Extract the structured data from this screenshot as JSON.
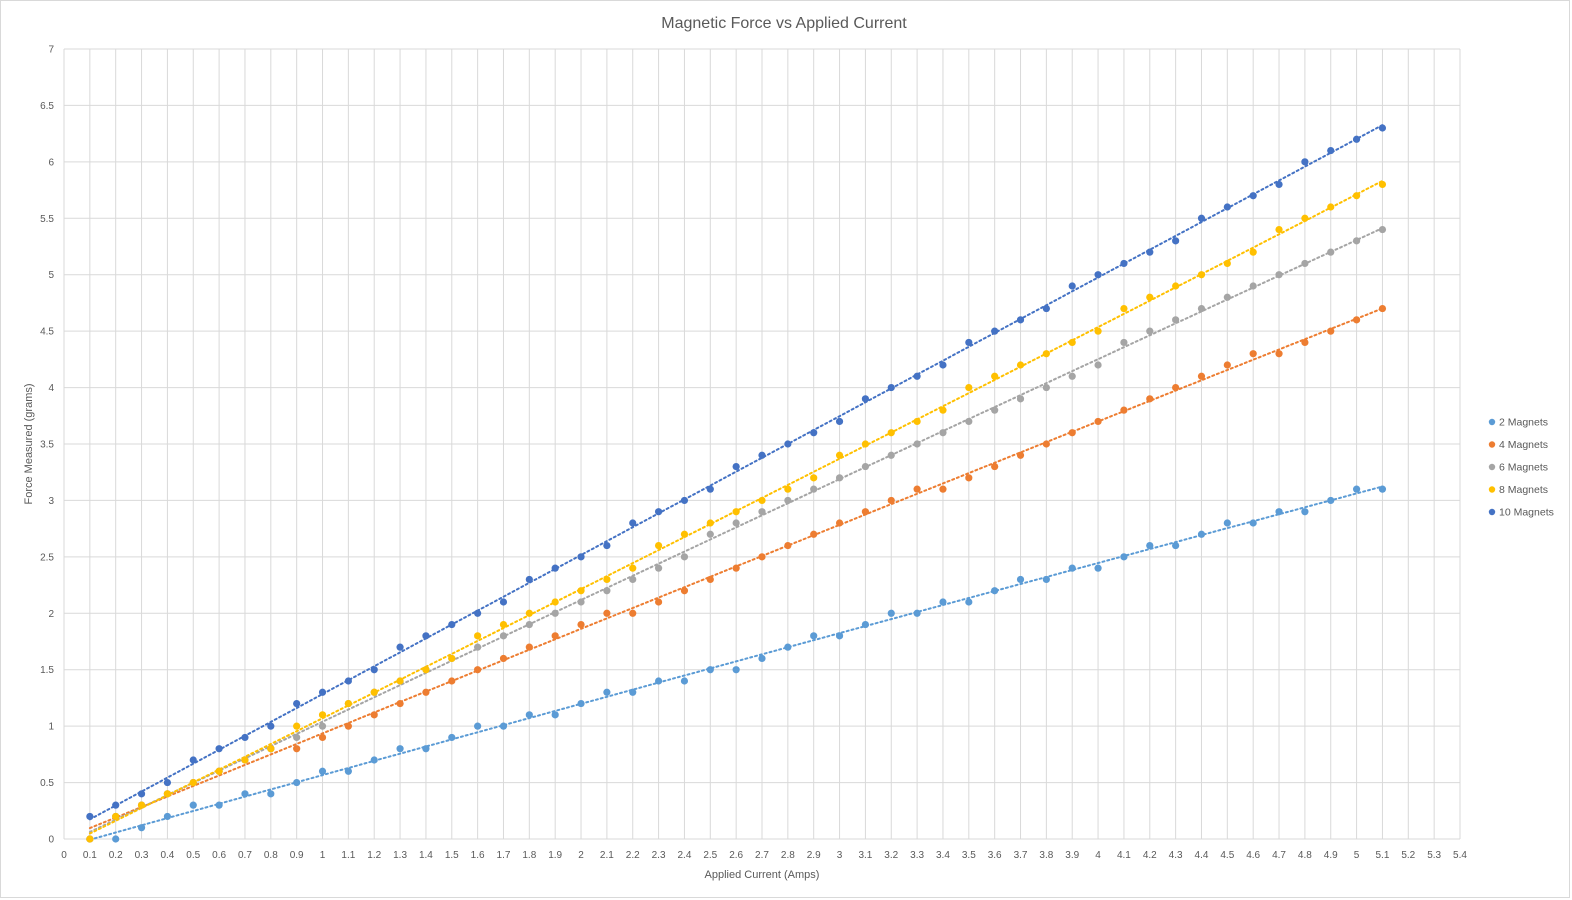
{
  "chart_data": {
    "type": "scatter",
    "title": "Magnetic Force vs Applied Current",
    "xlabel": "Applied Current (Amps)",
    "ylabel": "Force Measured (grams)",
    "xlim": [
      0,
      5.4
    ],
    "ylim": [
      0,
      7
    ],
    "x_major_step": 0.1,
    "y_major_step": 0.5,
    "x_tick_labels": [
      "0",
      "0.1",
      "0.2",
      "0.3",
      "0.4",
      "0.5",
      "0.6",
      "0.7",
      "0.8",
      "0.9",
      "1",
      "1.1",
      "1.2",
      "1.3",
      "1.4",
      "1.5",
      "1.6",
      "1.7",
      "1.8",
      "1.9",
      "2",
      "2.1",
      "2.2",
      "2.3",
      "2.4",
      "2.5",
      "2.6",
      "2.7",
      "2.8",
      "2.9",
      "3",
      "3.1",
      "3.2",
      "3.3",
      "3.4",
      "3.5",
      "3.6",
      "3.7",
      "3.8",
      "3.9",
      "4",
      "4.1",
      "4.2",
      "4.3",
      "4.4",
      "4.5",
      "4.6",
      "4.7",
      "4.8",
      "4.9",
      "5",
      "5.1",
      "5.2",
      "5.3",
      "5.4"
    ],
    "y_tick_labels": [
      "0",
      "0.5",
      "1",
      "1.5",
      "2",
      "2.5",
      "3",
      "3.5",
      "4",
      "4.5",
      "5",
      "5.5",
      "6",
      "6.5",
      "7"
    ],
    "grid": true,
    "legend_position": "right",
    "trendline": "dotted",
    "x": [
      0.1,
      0.2,
      0.3,
      0.4,
      0.5,
      0.6,
      0.7,
      0.8,
      0.9,
      1.0,
      1.1,
      1.2,
      1.3,
      1.4,
      1.5,
      1.6,
      1.7,
      1.8,
      1.9,
      2.0,
      2.1,
      2.2,
      2.3,
      2.4,
      2.5,
      2.6,
      2.7,
      2.8,
      2.9,
      3.0,
      3.1,
      3.2,
      3.3,
      3.4,
      3.5,
      3.6,
      3.7,
      3.8,
      3.9,
      4.0,
      4.1,
      4.2,
      4.3,
      4.4,
      4.5,
      4.6,
      4.7,
      4.8,
      4.9,
      5.0,
      5.1
    ],
    "series": [
      {
        "name": "2 Magnets",
        "color": "#5b9bd5",
        "values": [
          0,
          0,
          0.1,
          0.2,
          0.3,
          0.3,
          0.4,
          0.4,
          0.5,
          0.6,
          0.6,
          0.7,
          0.8,
          0.8,
          0.9,
          1.0,
          1.0,
          1.1,
          1.1,
          1.2,
          1.3,
          1.3,
          1.4,
          1.4,
          1.5,
          1.5,
          1.6,
          1.7,
          1.8,
          1.8,
          1.9,
          2.0,
          2.0,
          2.1,
          2.1,
          2.2,
          2.3,
          2.3,
          2.4,
          2.4,
          2.5,
          2.6,
          2.6,
          2.7,
          2.8,
          2.8,
          2.9,
          2.9,
          3.0,
          3.1,
          3.1
        ]
      },
      {
        "name": "4 Magnets",
        "color": "#ed7d31",
        "values": [
          0,
          0.2,
          0.3,
          0.4,
          0.5,
          0.6,
          0.7,
          0.8,
          0.8,
          0.9,
          1.0,
          1.1,
          1.2,
          1.3,
          1.4,
          1.5,
          1.6,
          1.7,
          1.8,
          1.9,
          2.0,
          2.0,
          2.1,
          2.2,
          2.3,
          2.4,
          2.5,
          2.6,
          2.7,
          2.8,
          2.9,
          3.0,
          3.1,
          3.1,
          3.2,
          3.3,
          3.4,
          3.5,
          3.6,
          3.7,
          3.8,
          3.9,
          4.0,
          4.1,
          4.2,
          4.3,
          4.3,
          4.4,
          4.5,
          4.6,
          4.7
        ]
      },
      {
        "name": "6 Magnets",
        "color": "#a5a5a5",
        "values": [
          0,
          0.2,
          0.3,
          0.4,
          0.5,
          0.6,
          0.7,
          0.8,
          0.9,
          1.0,
          1.2,
          1.3,
          1.4,
          1.5,
          1.6,
          1.7,
          1.8,
          1.9,
          2.0,
          2.1,
          2.2,
          2.3,
          2.4,
          2.5,
          2.7,
          2.8,
          2.9,
          3.0,
          3.1,
          3.2,
          3.3,
          3.4,
          3.5,
          3.6,
          3.7,
          3.8,
          3.9,
          4.0,
          4.1,
          4.2,
          4.4,
          4.5,
          4.6,
          4.7,
          4.8,
          4.9,
          5.0,
          5.1,
          5.2,
          5.3,
          5.4
        ]
      },
      {
        "name": "8 Magnets",
        "color": "#ffc000",
        "values": [
          0,
          0.2,
          0.3,
          0.4,
          0.5,
          0.6,
          0.7,
          0.8,
          1.0,
          1.1,
          1.2,
          1.3,
          1.4,
          1.5,
          1.6,
          1.8,
          1.9,
          2.0,
          2.1,
          2.2,
          2.3,
          2.4,
          2.6,
          2.7,
          2.8,
          2.9,
          3.0,
          3.1,
          3.2,
          3.4,
          3.5,
          3.6,
          3.7,
          3.8,
          4.0,
          4.1,
          4.2,
          4.3,
          4.4,
          4.5,
          4.7,
          4.8,
          4.9,
          5.0,
          5.1,
          5.2,
          5.4,
          5.5,
          5.6,
          5.7,
          5.8
        ]
      },
      {
        "name": "10 Magnets",
        "color": "#4472c4",
        "values": [
          0.2,
          0.3,
          0.4,
          0.5,
          0.7,
          0.8,
          0.9,
          1.0,
          1.2,
          1.3,
          1.4,
          1.5,
          1.7,
          1.8,
          1.9,
          2.0,
          2.1,
          2.3,
          2.4,
          2.5,
          2.6,
          2.8,
          2.9,
          3.0,
          3.1,
          3.3,
          3.4,
          3.5,
          3.6,
          3.7,
          3.9,
          4.0,
          4.1,
          4.2,
          4.4,
          4.5,
          4.6,
          4.7,
          4.9,
          5.0,
          5.1,
          5.2,
          5.3,
          5.5,
          5.6,
          5.7,
          5.8,
          6.0,
          6.1,
          6.2,
          6.3
        ]
      }
    ]
  },
  "colors": {
    "gridline": "#d9d9d9",
    "text": "#595959"
  }
}
